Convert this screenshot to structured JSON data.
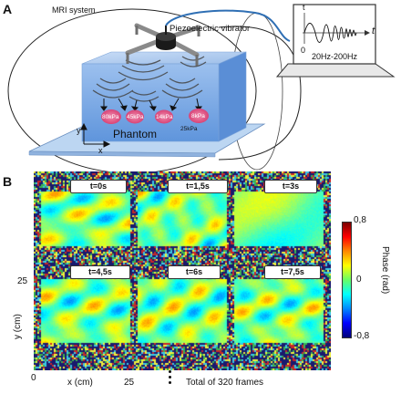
{
  "panel_a": {
    "letter": "A",
    "mri_label": "MRI system",
    "vibrator_label": "Piezoelectric vibrator",
    "frequency_label": "20Hz-200Hz",
    "wave_zero": "0",
    "wave_t": "t",
    "phantom_label": "Phantom",
    "axis_y": "y",
    "axis_x": "x",
    "stiffness": [
      "80kPa",
      "45kPa",
      "14kPa",
      "8kPa"
    ],
    "background_stiffness": "25kPa"
  },
  "panel_b": {
    "letter": "B",
    "frames": [
      "t=0s",
      "t=1,5s",
      "t=3s",
      "t=4,5s",
      "t=6s",
      "t=7,5s"
    ],
    "y_tick_25": "25",
    "y_label": "y (cm)",
    "x_tick_0": "0",
    "x_label": "x (cm)",
    "x_tick_25": "25",
    "total_frames": "Total of 320 frames",
    "colorbar": {
      "max": "0,8",
      "mid": "0",
      "min": "-0,8",
      "label": "Phase (rad)"
    }
  },
  "colors": {
    "phantom_blue": "#6d9fe0",
    "lesion_pink": "#e85a8a",
    "noise_navy": "#1a1a6e"
  }
}
